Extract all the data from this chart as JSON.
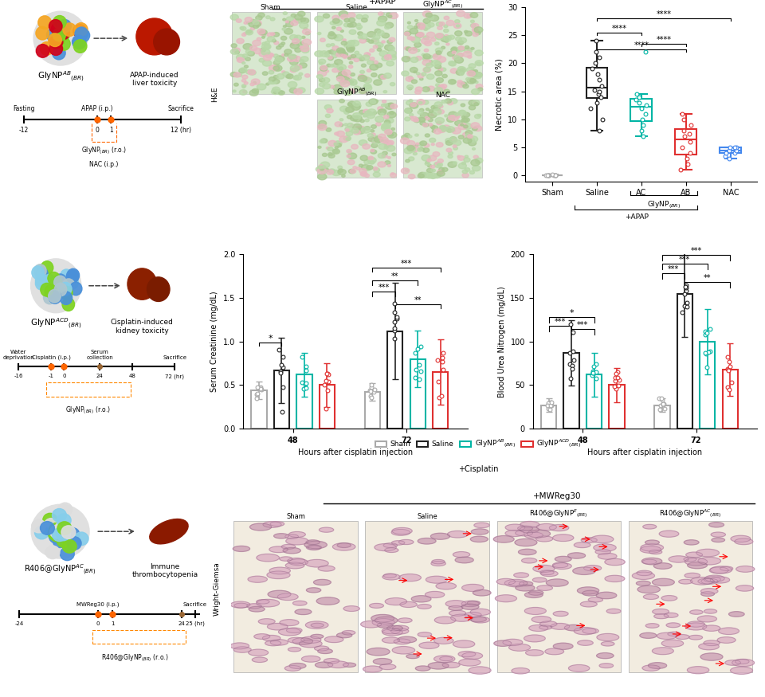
{
  "fig_width": 9.6,
  "fig_height": 8.75,
  "bg_color": "#ffffff",
  "box_groups": [
    "Sham",
    "Saline",
    "AC",
    "AB",
    "NAC"
  ],
  "box_colors": [
    "#aaaaaa",
    "#222222",
    "#00b5a5",
    "#e03030",
    "#4488ee"
  ],
  "sham_data": [
    0.05,
    0.08,
    0.1,
    0.12,
    0.15,
    0.1,
    0.08,
    0.12,
    0.09,
    0.11
  ],
  "saline_data": [
    8,
    10,
    12,
    13,
    14,
    14.5,
    15,
    15.2,
    16,
    17,
    18,
    19,
    20,
    21,
    22,
    24
  ],
  "ac_data": [
    7,
    8,
    9,
    10,
    11,
    12,
    12.5,
    13,
    13.5,
    14,
    14.5,
    22
  ],
  "ab_data": [
    1,
    2,
    3,
    4,
    5,
    6,
    7,
    7.5,
    8,
    9,
    10,
    11
  ],
  "nac_data": [
    3,
    3.5,
    4,
    4,
    4.5,
    4.5,
    5,
    5,
    5
  ],
  "cr48_means": [
    0.44,
    0.67,
    0.62,
    0.5
  ],
  "cr48_sems": [
    0.04,
    0.15,
    0.1,
    0.1
  ],
  "cr72_means": [
    0.42,
    1.12,
    0.8,
    0.65
  ],
  "cr72_sems": [
    0.04,
    0.22,
    0.13,
    0.15
  ],
  "bun48_means": [
    27,
    87,
    62,
    50
  ],
  "bun48_sems": [
    3,
    15,
    10,
    8
  ],
  "bun72_means": [
    27,
    155,
    100,
    68
  ],
  "bun72_sems": [
    3,
    20,
    15,
    12
  ],
  "bar_colors": [
    "#aaaaaa",
    "#222222",
    "#00b5a5",
    "#e03030"
  ],
  "nano_colors1": [
    "#f5a623",
    "#4a90d9",
    "#7ed321",
    "#d0021b"
  ],
  "nano_colors2": [
    "#87ceeb",
    "#4a90d9",
    "#7ed321",
    "#aec6cf"
  ],
  "nano_colors3": [
    "#87ceeb",
    "#4a90d9",
    "#7ed321",
    "#dddddd"
  ]
}
